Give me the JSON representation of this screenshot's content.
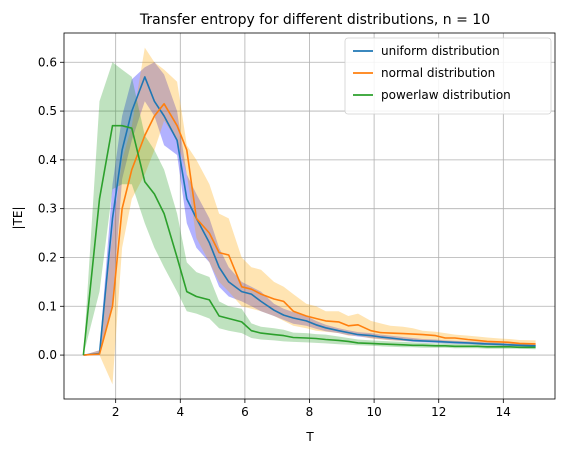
{
  "chart_data": {
    "type": "line",
    "title": "Transfer entropy for different distributions, n = 10",
    "xlabel": "T",
    "ylabel": "|TE|",
    "xlim": [
      0.4,
      15.6
    ],
    "ylim": [
      -0.09,
      0.66
    ],
    "xticks": [
      2,
      4,
      6,
      8,
      10,
      12,
      14
    ],
    "yticks": [
      0.0,
      0.1,
      0.2,
      0.3,
      0.4,
      0.5,
      0.6
    ],
    "xtick_labels": [
      "2",
      "4",
      "6",
      "8",
      "10",
      "12",
      "14"
    ],
    "ytick_labels": [
      "0.0",
      "0.1",
      "0.2",
      "0.3",
      "0.4",
      "0.5",
      "0.6"
    ],
    "grid": true,
    "legend_position": "top-right",
    "x": [
      1.0,
      1.5,
      1.9,
      2.2,
      2.5,
      2.9,
      3.2,
      3.5,
      3.9,
      4.2,
      4.5,
      4.9,
      5.2,
      5.5,
      5.9,
      6.2,
      6.5,
      6.9,
      7.2,
      7.5,
      7.9,
      8.2,
      8.5,
      8.9,
      9.2,
      9.5,
      9.9,
      10.2,
      10.5,
      10.9,
      11.2,
      11.5,
      11.9,
      12.2,
      12.5,
      12.9,
      13.2,
      13.5,
      13.9,
      14.2,
      14.5,
      15.0
    ],
    "series": [
      {
        "name": "uniform distribution",
        "color": "#1f77b4",
        "band_color": "#0000ff",
        "values": [
          0.0,
          0.003,
          0.28,
          0.42,
          0.5,
          0.57,
          0.52,
          0.49,
          0.44,
          0.32,
          0.28,
          0.23,
          0.18,
          0.15,
          0.13,
          0.125,
          0.11,
          0.092,
          0.082,
          0.076,
          0.07,
          0.062,
          0.056,
          0.05,
          0.046,
          0.042,
          0.04,
          0.037,
          0.035,
          0.032,
          0.03,
          0.029,
          0.028,
          0.027,
          0.026,
          0.025,
          0.024,
          0.023,
          0.022,
          0.021,
          0.02,
          0.019
        ],
        "lower": [
          0.0,
          0.0,
          0.1,
          0.36,
          0.44,
          0.52,
          0.49,
          0.43,
          0.41,
          0.27,
          0.22,
          0.19,
          0.14,
          0.12,
          0.11,
          0.1,
          0.09,
          0.08,
          0.072,
          0.064,
          0.06,
          0.054,
          0.049,
          0.045,
          0.041,
          0.038,
          0.035,
          0.033,
          0.031,
          0.029,
          0.027,
          0.026,
          0.025,
          0.024,
          0.023,
          0.022,
          0.021,
          0.02,
          0.019,
          0.018,
          0.018,
          0.017
        ],
        "upper": [
          0.0,
          0.01,
          0.35,
          0.49,
          0.565,
          0.59,
          0.6,
          0.575,
          0.5,
          0.37,
          0.33,
          0.28,
          0.22,
          0.18,
          0.15,
          0.14,
          0.13,
          0.105,
          0.095,
          0.088,
          0.08,
          0.07,
          0.062,
          0.055,
          0.051,
          0.047,
          0.045,
          0.042,
          0.04,
          0.037,
          0.035,
          0.033,
          0.032,
          0.03,
          0.029,
          0.028,
          0.027,
          0.026,
          0.025,
          0.024,
          0.023,
          0.022
        ]
      },
      {
        "name": "normal distribution",
        "color": "#ff7f0e",
        "band_color": "#ffa500",
        "values": [
          0.0,
          0.002,
          0.1,
          0.3,
          0.38,
          0.45,
          0.49,
          0.515,
          0.47,
          0.42,
          0.28,
          0.25,
          0.21,
          0.205,
          0.14,
          0.135,
          0.125,
          0.115,
          0.11,
          0.09,
          0.08,
          0.075,
          0.07,
          0.068,
          0.06,
          0.062,
          0.05,
          0.046,
          0.045,
          0.044,
          0.043,
          0.042,
          0.04,
          0.035,
          0.035,
          0.032,
          0.03,
          0.028,
          0.027,
          0.026,
          0.024,
          0.023
        ],
        "lower": [
          0.0,
          0.0,
          -0.06,
          0.22,
          0.32,
          0.37,
          0.42,
          0.48,
          0.44,
          0.37,
          0.24,
          0.19,
          0.15,
          0.13,
          0.1,
          0.095,
          0.09,
          0.08,
          0.07,
          0.06,
          0.055,
          0.05,
          0.048,
          0.045,
          0.04,
          0.04,
          0.034,
          0.032,
          0.03,
          0.029,
          0.028,
          0.027,
          0.026,
          0.025,
          0.024,
          0.023,
          0.022,
          0.021,
          0.02,
          0.019,
          0.018,
          0.018
        ],
        "upper": [
          0.0,
          0.01,
          0.25,
          0.4,
          0.47,
          0.63,
          0.6,
          0.585,
          0.56,
          0.43,
          0.4,
          0.35,
          0.29,
          0.28,
          0.2,
          0.18,
          0.175,
          0.15,
          0.14,
          0.125,
          0.105,
          0.1,
          0.09,
          0.09,
          0.08,
          0.085,
          0.07,
          0.065,
          0.06,
          0.058,
          0.055,
          0.05,
          0.048,
          0.045,
          0.042,
          0.04,
          0.038,
          0.036,
          0.034,
          0.033,
          0.031,
          0.03
        ]
      },
      {
        "name": "powerlaw distribution",
        "color": "#2ca02c",
        "band_color": "#2ca02c",
        "values": [
          0.0,
          0.32,
          0.47,
          0.47,
          0.465,
          0.355,
          0.33,
          0.29,
          0.2,
          0.13,
          0.12,
          0.113,
          0.08,
          0.075,
          0.068,
          0.05,
          0.045,
          0.042,
          0.04,
          0.036,
          0.035,
          0.034,
          0.032,
          0.03,
          0.028,
          0.025,
          0.024,
          0.023,
          0.022,
          0.021,
          0.02,
          0.02,
          0.019,
          0.019,
          0.018,
          0.018,
          0.018,
          0.017,
          0.017,
          0.017,
          0.016,
          0.016
        ],
        "lower": [
          0.0,
          0.13,
          0.34,
          0.35,
          0.35,
          0.27,
          0.22,
          0.18,
          0.13,
          0.09,
          0.085,
          0.075,
          0.055,
          0.05,
          0.045,
          0.035,
          0.032,
          0.03,
          0.028,
          0.027,
          0.026,
          0.025,
          0.024,
          0.022,
          0.021,
          0.02,
          0.019,
          0.018,
          0.017,
          0.016,
          0.016,
          0.015,
          0.015,
          0.015,
          0.014,
          0.014,
          0.014,
          0.013,
          0.013,
          0.013,
          0.013,
          0.012
        ],
        "upper": [
          0.0,
          0.52,
          0.6,
          0.585,
          0.57,
          0.45,
          0.42,
          0.38,
          0.29,
          0.19,
          0.17,
          0.16,
          0.11,
          0.1,
          0.095,
          0.065,
          0.058,
          0.055,
          0.052,
          0.046,
          0.045,
          0.043,
          0.042,
          0.038,
          0.035,
          0.032,
          0.03,
          0.029,
          0.028,
          0.027,
          0.026,
          0.025,
          0.024,
          0.024,
          0.023,
          0.022,
          0.022,
          0.021,
          0.021,
          0.02,
          0.02,
          0.02
        ]
      }
    ]
  }
}
